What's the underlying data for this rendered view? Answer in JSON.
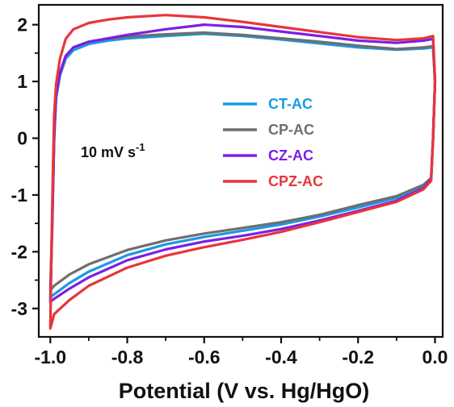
{
  "chart_data": {
    "type": "line",
    "title": "",
    "xlabel": "Potential (V vs. Hg/HgO)",
    "ylabel": "",
    "xlim": [
      -1.03,
      0.02
    ],
    "ylim": [
      -3.5,
      2.35
    ],
    "xticks": [
      -1.0,
      -0.8,
      -0.6,
      -0.4,
      -0.2,
      0.0
    ],
    "xtick_labels": [
      "-1.0",
      "-0.8",
      "-0.6",
      "-0.4",
      "-0.2",
      "0.0"
    ],
    "yticks": [
      2,
      1,
      0,
      -1,
      -2,
      -3
    ],
    "ytick_labels": [
      "2",
      "1",
      "0",
      "-1",
      "-2",
      "-3"
    ],
    "grid": false,
    "legend_position": "right",
    "annotation": {
      "text": "10 mV s",
      "superscript": "-1"
    },
    "series": [
      {
        "name": "CT-AC",
        "color": "#1a9ae6",
        "anodic": [
          [
            -1.0,
            -2.8
          ],
          [
            -0.995,
            -1.5
          ],
          [
            -0.99,
            0.0
          ],
          [
            -0.985,
            0.7
          ],
          [
            -0.975,
            1.1
          ],
          [
            -0.96,
            1.4
          ],
          [
            -0.94,
            1.55
          ],
          [
            -0.9,
            1.66
          ],
          [
            -0.85,
            1.72
          ],
          [
            -0.8,
            1.76
          ],
          [
            -0.7,
            1.8
          ],
          [
            -0.6,
            1.84
          ],
          [
            -0.5,
            1.8
          ],
          [
            -0.4,
            1.74
          ],
          [
            -0.3,
            1.67
          ],
          [
            -0.2,
            1.6
          ],
          [
            -0.1,
            1.56
          ],
          [
            -0.03,
            1.58
          ],
          [
            -0.005,
            1.6
          ]
        ],
        "cathodic": [
          [
            -0.005,
            1.6
          ],
          [
            0.0,
            1.0
          ],
          [
            -0.005,
            0.0
          ],
          [
            -0.01,
            -0.7
          ],
          [
            -0.03,
            -0.85
          ],
          [
            -0.1,
            -1.05
          ],
          [
            -0.2,
            -1.22
          ],
          [
            -0.3,
            -1.38
          ],
          [
            -0.4,
            -1.52
          ],
          [
            -0.5,
            -1.63
          ],
          [
            -0.6,
            -1.74
          ],
          [
            -0.7,
            -1.87
          ],
          [
            -0.8,
            -2.06
          ],
          [
            -0.9,
            -2.35
          ],
          [
            -0.95,
            -2.55
          ],
          [
            -0.99,
            -2.75
          ],
          [
            -1.0,
            -2.8
          ]
        ]
      },
      {
        "name": "CP-AC",
        "color": "#6e6e6e",
        "anodic": [
          [
            -1.0,
            -2.68
          ],
          [
            -0.995,
            -1.4
          ],
          [
            -0.99,
            0.0
          ],
          [
            -0.985,
            0.75
          ],
          [
            -0.975,
            1.15
          ],
          [
            -0.96,
            1.45
          ],
          [
            -0.94,
            1.6
          ],
          [
            -0.9,
            1.7
          ],
          [
            -0.85,
            1.75
          ],
          [
            -0.8,
            1.79
          ],
          [
            -0.7,
            1.83
          ],
          [
            -0.6,
            1.86
          ],
          [
            -0.5,
            1.82
          ],
          [
            -0.4,
            1.76
          ],
          [
            -0.3,
            1.7
          ],
          [
            -0.2,
            1.63
          ],
          [
            -0.1,
            1.57
          ],
          [
            -0.03,
            1.6
          ],
          [
            -0.005,
            1.62
          ]
        ],
        "cathodic": [
          [
            -0.005,
            1.62
          ],
          [
            0.0,
            1.0
          ],
          [
            -0.005,
            0.0
          ],
          [
            -0.01,
            -0.7
          ],
          [
            -0.03,
            -0.82
          ],
          [
            -0.1,
            -1.02
          ],
          [
            -0.2,
            -1.18
          ],
          [
            -0.3,
            -1.35
          ],
          [
            -0.4,
            -1.48
          ],
          [
            -0.5,
            -1.58
          ],
          [
            -0.6,
            -1.68
          ],
          [
            -0.7,
            -1.8
          ],
          [
            -0.8,
            -1.97
          ],
          [
            -0.9,
            -2.22
          ],
          [
            -0.95,
            -2.4
          ],
          [
            -0.99,
            -2.6
          ],
          [
            -1.0,
            -2.68
          ]
        ]
      },
      {
        "name": "CZ-AC",
        "color": "#7b1fe6",
        "anodic": [
          [
            -1.0,
            -2.88
          ],
          [
            -0.995,
            -1.5
          ],
          [
            -0.99,
            0.0
          ],
          [
            -0.985,
            0.75
          ],
          [
            -0.975,
            1.15
          ],
          [
            -0.96,
            1.45
          ],
          [
            -0.94,
            1.6
          ],
          [
            -0.9,
            1.7
          ],
          [
            -0.85,
            1.76
          ],
          [
            -0.8,
            1.82
          ],
          [
            -0.7,
            1.92
          ],
          [
            -0.6,
            2.0
          ],
          [
            -0.5,
            1.96
          ],
          [
            -0.4,
            1.88
          ],
          [
            -0.3,
            1.8
          ],
          [
            -0.2,
            1.72
          ],
          [
            -0.1,
            1.68
          ],
          [
            -0.03,
            1.72
          ],
          [
            -0.005,
            1.75
          ]
        ],
        "cathodic": [
          [
            -0.005,
            1.75
          ],
          [
            0.0,
            1.0
          ],
          [
            -0.005,
            0.0
          ],
          [
            -0.01,
            -0.72
          ],
          [
            -0.03,
            -0.88
          ],
          [
            -0.1,
            -1.1
          ],
          [
            -0.2,
            -1.28
          ],
          [
            -0.3,
            -1.45
          ],
          [
            -0.4,
            -1.6
          ],
          [
            -0.5,
            -1.72
          ],
          [
            -0.6,
            -1.82
          ],
          [
            -0.7,
            -1.96
          ],
          [
            -0.8,
            -2.15
          ],
          [
            -0.9,
            -2.45
          ],
          [
            -0.95,
            -2.65
          ],
          [
            -0.99,
            -2.83
          ],
          [
            -1.0,
            -2.88
          ]
        ]
      },
      {
        "name": "CPZ-AC",
        "color": "#e8353a",
        "anodic": [
          [
            -1.0,
            -3.35
          ],
          [
            -0.997,
            -2.0
          ],
          [
            -0.993,
            -0.5
          ],
          [
            -0.99,
            0.4
          ],
          [
            -0.985,
            0.95
          ],
          [
            -0.975,
            1.4
          ],
          [
            -0.96,
            1.75
          ],
          [
            -0.94,
            1.92
          ],
          [
            -0.9,
            2.03
          ],
          [
            -0.85,
            2.09
          ],
          [
            -0.8,
            2.13
          ],
          [
            -0.7,
            2.17
          ],
          [
            -0.6,
            2.13
          ],
          [
            -0.5,
            2.05
          ],
          [
            -0.4,
            1.96
          ],
          [
            -0.3,
            1.87
          ],
          [
            -0.2,
            1.78
          ],
          [
            -0.1,
            1.73
          ],
          [
            -0.03,
            1.76
          ],
          [
            -0.005,
            1.8
          ]
        ],
        "cathodic": [
          [
            -0.005,
            1.8
          ],
          [
            0.0,
            1.0
          ],
          [
            -0.005,
            0.0
          ],
          [
            -0.01,
            -0.75
          ],
          [
            -0.03,
            -0.9
          ],
          [
            -0.1,
            -1.12
          ],
          [
            -0.2,
            -1.3
          ],
          [
            -0.3,
            -1.48
          ],
          [
            -0.4,
            -1.65
          ],
          [
            -0.5,
            -1.79
          ],
          [
            -0.6,
            -1.92
          ],
          [
            -0.7,
            -2.07
          ],
          [
            -0.8,
            -2.28
          ],
          [
            -0.9,
            -2.6
          ],
          [
            -0.95,
            -2.85
          ],
          [
            -0.99,
            -3.1
          ],
          [
            -1.0,
            -3.35
          ]
        ]
      }
    ]
  }
}
